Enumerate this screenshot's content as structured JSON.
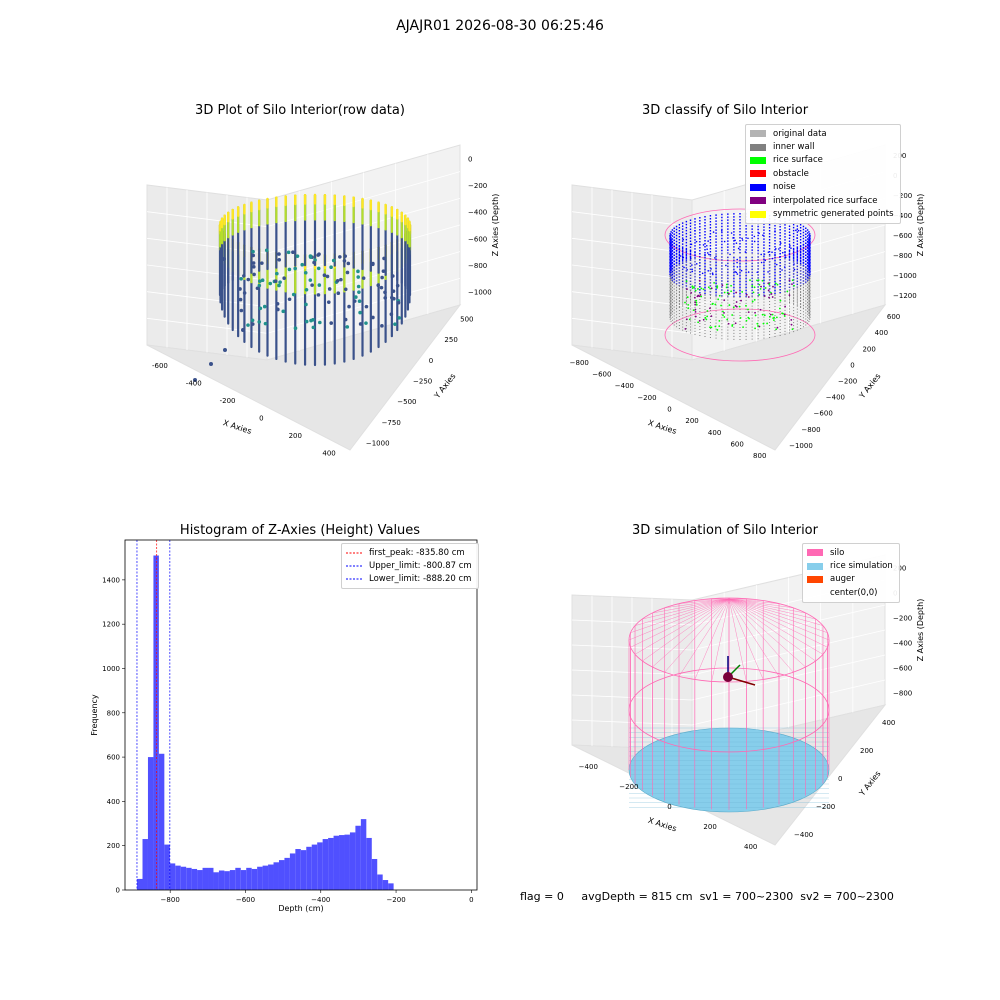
{
  "suptitle": "AJAJR01 2026-08-30 06:25:46",
  "footer": {
    "flag": "flag = 0",
    "avg": "avgDepth = 815 cm",
    "sv1": "sv1 = 700~2300",
    "sv2": "sv2 = 700~2300"
  },
  "colors": {
    "original": "#b3b3b3",
    "inner_wall": "#808080",
    "rice_surface": "#00ff00",
    "obstacle": "#ff0000",
    "noise": "#0000ff",
    "interp": "#800080",
    "sym": "#ffff00",
    "silo": "#ff69b4",
    "rice_sim": "#87ceeb",
    "auger": "#ff4500",
    "hist_bar": "#5050ff"
  },
  "chart_data": [
    {
      "type": "scatter",
      "title": "3D Plot of Silo Interior(row data)",
      "xlabel": "X Axies",
      "ylabel": "Y Axies",
      "zlabel": "Z Axies (Depth)",
      "xticks": [
        "-600",
        "-400",
        "-200",
        "0",
        "200",
        "400"
      ],
      "yticks": [
        "500",
        "250",
        "0",
        "−250",
        "−500",
        "−750",
        "−1000"
      ],
      "zticks": [
        "0",
        "−200",
        "−400",
        "−600",
        "−800",
        "−1000"
      ],
      "colormap": "viridis"
    },
    {
      "type": "scatter",
      "title": "3D classify of Silo Interior",
      "xlabel": "X Axies",
      "ylabel": "Y Axies",
      "zlabel": "Z Axies (Depth)",
      "xticks": [
        "−800",
        "−600",
        "−400",
        "−200",
        "0",
        "200",
        "400",
        "600",
        "800"
      ],
      "yticks": [
        "600",
        "400",
        "200",
        "0",
        "−200",
        "−400",
        "−600",
        "−800",
        "−1000"
      ],
      "zticks": [
        "200",
        "0",
        "−200",
        "−400",
        "−600",
        "−800",
        "−1000",
        "−1200"
      ],
      "legend": [
        "original data",
        "inner wall",
        "rice surface",
        "obstacle",
        "noise",
        "interpolated rice surface",
        "symmetric generated points"
      ],
      "legend_placement": "top-right"
    },
    {
      "type": "bar",
      "title": "Histogram of Z-Axies (Height) Values",
      "xlabel": "Depth (cm)",
      "ylabel": "Frequency",
      "xlim": [
        -920,
        15
      ],
      "ylim": [
        0,
        1580
      ],
      "xticks": [
        "−800",
        "−600",
        "−400",
        "−200",
        "0"
      ],
      "yticks": [
        "0",
        "200",
        "400",
        "600",
        "800",
        "1000",
        "1200",
        "1400"
      ],
      "bin_width": 14.5,
      "bin_start": -888,
      "values": [
        50,
        230,
        600,
        1510,
        615,
        205,
        120,
        110,
        105,
        100,
        95,
        90,
        100,
        100,
        80,
        88,
        85,
        90,
        100,
        90,
        100,
        95,
        105,
        110,
        115,
        125,
        135,
        145,
        165,
        185,
        180,
        195,
        205,
        215,
        230,
        235,
        245,
        248,
        250,
        260,
        290,
        320,
        235,
        140,
        70,
        45,
        30
      ],
      "lines": [
        {
          "name": "first_peak: -835.80 cm",
          "x": -835.8,
          "color": "#ff0000"
        },
        {
          "name": "Upper_limit: -800.87 cm",
          "x": -800.87,
          "color": "#0000ff"
        },
        {
          "name": "Lower_limit: -888.20 cm",
          "x": -888.2,
          "color": "#0000ff"
        }
      ],
      "legend_placement": "top-right"
    },
    {
      "type": "scatter",
      "title": "3D simulation of Silo Interior",
      "xlabel": "X Axies",
      "ylabel": "Y Axies",
      "zlabel": "Z Axies (Depth)",
      "xticks": [
        "−400",
        "−200",
        "0",
        "200",
        "400"
      ],
      "yticks": [
        "400",
        "200",
        "0",
        "−200",
        "−400"
      ],
      "zticks": [
        "200",
        "0",
        "−200",
        "−400",
        "−600",
        "−800"
      ],
      "legend": [
        "silo",
        "rice simulation",
        "auger",
        "center(0,0)"
      ],
      "legend_placement": "top-right"
    }
  ]
}
